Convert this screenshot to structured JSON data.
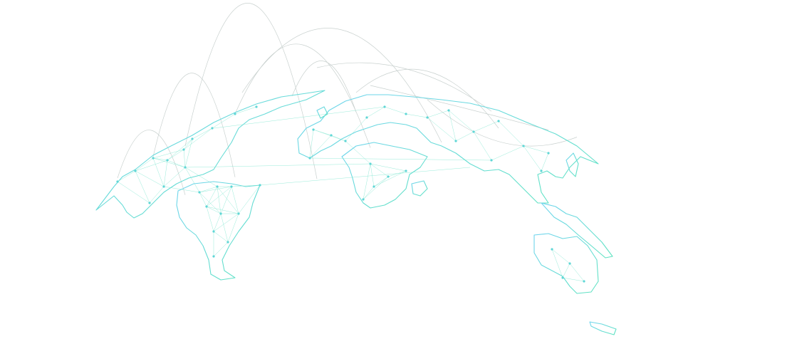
{
  "colors": {
    "background": "#ffffff",
    "land_stroke": "#5fe3c0",
    "land_stroke_alt": "#6fd4ee",
    "network_line": "#7fe6cf",
    "node": "#5fd6d6",
    "arc": "#c9d1cf"
  },
  "illustration": {
    "type": "world-map-network",
    "icon": "globe-network-icon"
  }
}
